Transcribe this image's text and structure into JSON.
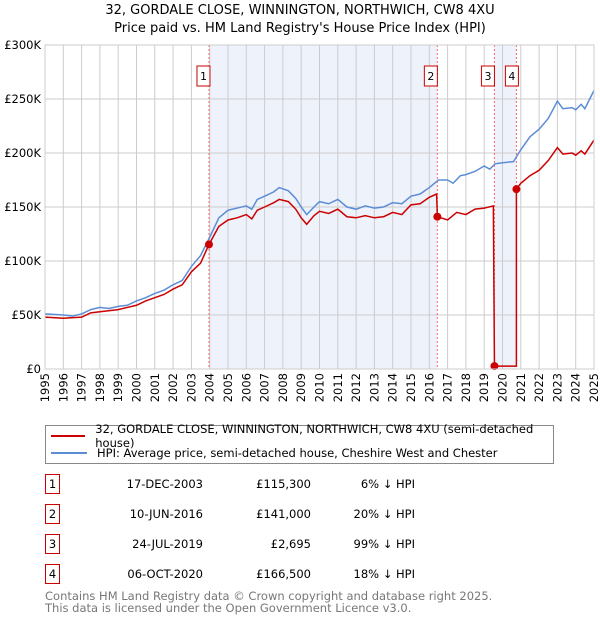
{
  "title": "32, GORDALE CLOSE, WINNINGTON, NORTHWICH, CW8 4XU",
  "subtitle": "Price paid vs. HM Land Registry's House Price Index (HPI)",
  "colors": {
    "property": "#cc0000",
    "hpi": "#5b8dd6",
    "shade": "#eef2fb",
    "marker_line": "#ff6666"
  },
  "chart_data": {
    "type": "line",
    "xlim": [
      1995,
      2025
    ],
    "ylim": [
      0,
      300000
    ],
    "yticks": [
      0,
      50000,
      100000,
      150000,
      200000,
      250000,
      300000
    ],
    "ytick_labels": [
      "£0",
      "£50K",
      "£100K",
      "£150K",
      "£200K",
      "£250K",
      "£300K"
    ],
    "xticks": [
      1995,
      1996,
      1997,
      1998,
      1999,
      2000,
      2001,
      2002,
      2003,
      2004,
      2005,
      2006,
      2007,
      2008,
      2009,
      2010,
      2011,
      2012,
      2013,
      2014,
      2015,
      2016,
      2017,
      2018,
      2019,
      2020,
      2021,
      2022,
      2023,
      2024,
      2025
    ],
    "xtick_labels": [
      "1995",
      "1996",
      "1997",
      "1998",
      "1999",
      "2000",
      "2001",
      "2002",
      "2003",
      "2004",
      "2005",
      "2006",
      "2007",
      "2008",
      "2009",
      "2010",
      "2011",
      "2012",
      "2013",
      "2014",
      "2015",
      "2016",
      "2017",
      "2018",
      "2019",
      "2020",
      "2021",
      "2022",
      "2023",
      "2024",
      "2025"
    ],
    "grid": true,
    "shaded_periods": [
      [
        2003.96,
        2016.44
      ],
      [
        2019.56,
        2020.76
      ]
    ],
    "series": [
      {
        "name": "32, GORDALE CLOSE, WINNINGTON, NORTHWICH, CW8 4XU (semi-detached house)",
        "color": "#cc0000",
        "x": [
          1995,
          1996,
          1997,
          1997.5,
          1998,
          1999,
          2000,
          2000.5,
          2001,
          2001.5,
          2002,
          2002.5,
          2003,
          2003.5,
          2003.96,
          2004.5,
          2005,
          2005.5,
          2006,
          2006.3,
          2006.6,
          2007,
          2007.5,
          2007.8,
          2008.3,
          2008.7,
          2009,
          2009.3,
          2009.7,
          2010,
          2010.5,
          2011,
          2011.5,
          2012,
          2012.5,
          2013,
          2013.5,
          2014,
          2014.5,
          2015,
          2015.5,
          2016,
          2016.4,
          2016.44,
          2017,
          2017.5,
          2018,
          2018.5,
          2019,
          2019.5,
          2019.56,
          2020.76,
          2020.76,
          2021,
          2021.5,
          2022,
          2022.5,
          2023,
          2023.3,
          2023.8,
          2024,
          2024.3,
          2024.5,
          2025
        ],
        "y": [
          48000,
          47000,
          48000,
          52000,
          53000,
          55000,
          59000,
          63000,
          66000,
          69000,
          74000,
          78000,
          90000,
          98000,
          115300,
          132000,
          138000,
          140000,
          143000,
          139000,
          147000,
          150000,
          154000,
          157000,
          155000,
          148000,
          140000,
          134000,
          142000,
          146000,
          144000,
          148000,
          141000,
          140000,
          142000,
          140000,
          141000,
          145000,
          143000,
          152000,
          153000,
          159000,
          162000,
          141000,
          138000,
          145000,
          143000,
          148000,
          149000,
          151000,
          2695,
          2695,
          166500,
          172000,
          179000,
          184000,
          193000,
          205000,
          199000,
          200000,
          198000,
          202000,
          199000,
          212000
        ]
      },
      {
        "name": "HPI: Average price, semi-detached house, Cheshire West and Chester",
        "color": "#5b8dd6",
        "x": [
          1995,
          1996,
          1996.5,
          1997,
          1997.5,
          1998,
          1998.5,
          1999,
          1999.5,
          2000,
          2000.5,
          2001,
          2001.5,
          2002,
          2002.5,
          2003,
          2003.5,
          2004,
          2004.5,
          2005,
          2005.5,
          2006,
          2006.3,
          2006.6,
          2007,
          2007.5,
          2007.8,
          2008.3,
          2008.7,
          2009,
          2009.3,
          2009.7,
          2010,
          2010.5,
          2011,
          2011.5,
          2012,
          2012.5,
          2013,
          2013.5,
          2014,
          2014.5,
          2015,
          2015.5,
          2016,
          2016.5,
          2017,
          2017.3,
          2017.7,
          2018,
          2018.5,
          2019,
          2019.3,
          2019.6,
          2020,
          2020.6,
          2021,
          2021.5,
          2022,
          2022.5,
          2023,
          2023.3,
          2023.8,
          2024,
          2024.3,
          2024.5,
          2025
        ],
        "y": [
          51000,
          50000,
          49000,
          51000,
          55000,
          57000,
          56000,
          58000,
          59000,
          63000,
          66000,
          70000,
          73000,
          78000,
          82000,
          95000,
          105000,
          122000,
          140000,
          147000,
          149000,
          151000,
          148000,
          157000,
          160000,
          164000,
          168000,
          165000,
          158000,
          150000,
          143000,
          150000,
          155000,
          153000,
          157000,
          150000,
          148000,
          151000,
          149000,
          150000,
          154000,
          153000,
          160000,
          162000,
          168000,
          175000,
          175000,
          172000,
          179000,
          180000,
          183000,
          188000,
          185000,
          190000,
          191000,
          192000,
          203000,
          215000,
          222000,
          232000,
          248000,
          241000,
          242000,
          240000,
          245000,
          241000,
          258000
        ]
      }
    ],
    "sales": [
      {
        "n": "1",
        "x": 2003.96,
        "y": 115300
      },
      {
        "n": "2",
        "x": 2016.44,
        "y": 141000
      },
      {
        "n": "3",
        "x": 2019.56,
        "y": 2695
      },
      {
        "n": "4",
        "x": 2020.76,
        "y": 166500
      }
    ]
  },
  "legend": {
    "property": "32, GORDALE CLOSE, WINNINGTON, NORTHWICH, CW8 4XU (semi-detached house)",
    "hpi": "HPI: Average price, semi-detached house, Cheshire West and Chester"
  },
  "transactions": [
    {
      "n": "1",
      "date": "17-DEC-2003",
      "price": "£115,300",
      "pct": "6% ↓ HPI"
    },
    {
      "n": "2",
      "date": "10-JUN-2016",
      "price": "£141,000",
      "pct": "20% ↓ HPI"
    },
    {
      "n": "3",
      "date": "24-JUL-2019",
      "price": "£2,695",
      "pct": "99% ↓ HPI"
    },
    {
      "n": "4",
      "date": "06-OCT-2020",
      "price": "£166,500",
      "pct": "18% ↓ HPI"
    }
  ],
  "footer": {
    "line1": "Contains HM Land Registry data © Crown copyright and database right 2025.",
    "line2": "This data is licensed under the Open Government Licence v3.0."
  }
}
